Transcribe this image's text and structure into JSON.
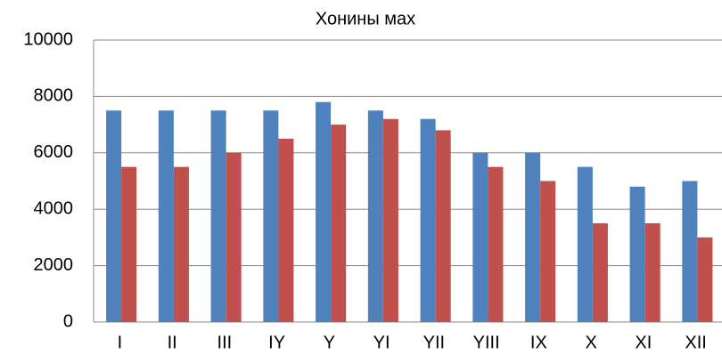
{
  "chart_data": {
    "type": "bar",
    "title": "Хонины мах",
    "categories": [
      "I",
      "II",
      "III",
      "IY",
      "Y",
      "YI",
      "YII",
      "YIII",
      "IX",
      "X",
      "XI",
      "XII"
    ],
    "series": [
      {
        "color": "#4f81bd",
        "values": [
          7500,
          7500,
          7500,
          7500,
          7800,
          7500,
          7200,
          6000,
          6000,
          5500,
          4800,
          5000
        ]
      },
      {
        "color": "#c0504d",
        "values": [
          5500,
          5500,
          6000,
          6500,
          7000,
          7200,
          6800,
          5500,
          5000,
          3500,
          3500,
          3000
        ]
      }
    ],
    "ylim": [
      0,
      10000
    ],
    "yticks": [
      0,
      2000,
      4000,
      6000,
      8000,
      10000
    ],
    "grid": true
  }
}
